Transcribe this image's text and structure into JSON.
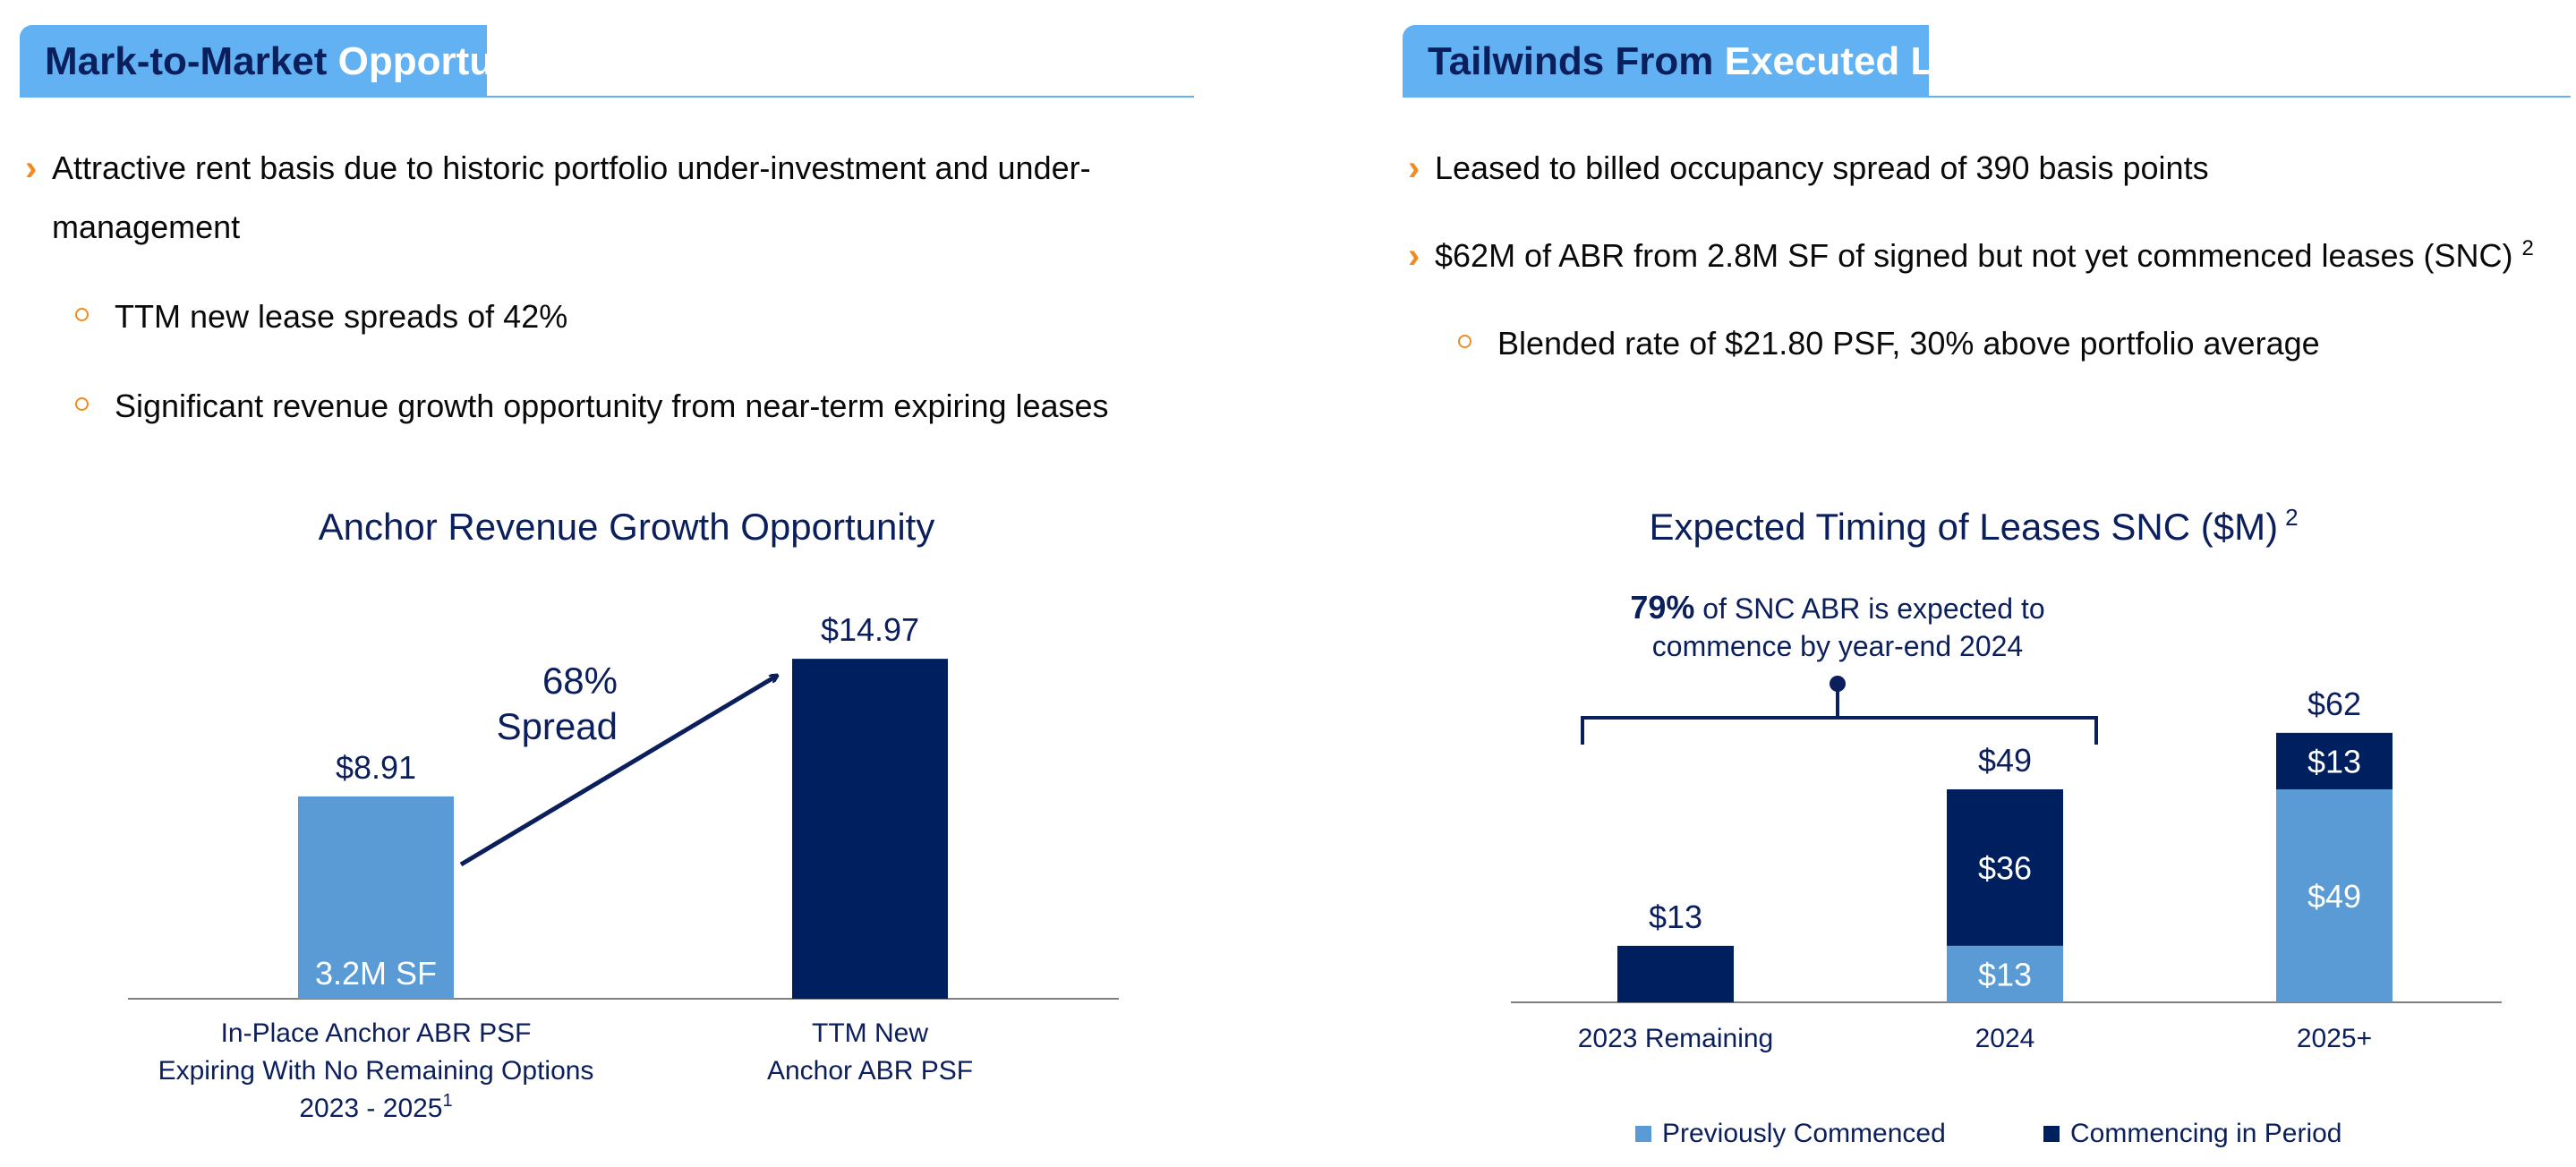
{
  "left_panel": {
    "header": {
      "dark": "Mark-to-Market ",
      "light": "Opportunities"
    },
    "bullets": [
      {
        "line1": "Attractive rent basis due to historic portfolio under-investment and under-",
        "line2": "management"
      }
    ],
    "sub_bullets": [
      "TTM new lease spreads of 42%",
      "Significant revenue growth opportunity from near-term expiring leases"
    ]
  },
  "right_panel": {
    "header": {
      "dark": "Tailwinds From ",
      "light": "Executed Leases"
    },
    "bullets": [
      {
        "text": "Leased to billed occupancy spread of 390 basis points"
      },
      {
        "text": "$62M of ABR from 2.8M SF of signed but not yet commenced leases (SNC)",
        "sup": "2"
      }
    ],
    "sub_bullets": [
      "Blended rate of $21.80 PSF, 30% above portfolio average"
    ]
  },
  "colors": {
    "navy": "#0b1f5c",
    "light_blue": "#5b9bd5",
    "header_blue": "#62b2f3",
    "orange": "#f28a1e"
  },
  "chart_data": [
    {
      "type": "bar",
      "title": "Anchor Revenue Growth Opportunity",
      "categories": [
        [
          "In-Place Anchor ABR PSF",
          "Expiring With No Remaining Options",
          "2023 - 2025"
        ],
        [
          "TTM New",
          "Anchor ABR PSF"
        ]
      ],
      "category_footnotes": [
        "1",
        ""
      ],
      "values": [
        8.91,
        14.97
      ],
      "value_labels": [
        "$8.91",
        "$14.97"
      ],
      "inner_labels": [
        "3.2M SF",
        ""
      ],
      "bar_colors": [
        "#5b9bd5",
        "#001f5f"
      ],
      "annotation": {
        "line1": "68%",
        "line2": "Spread"
      },
      "ylim": [
        0,
        16
      ],
      "grid": false
    },
    {
      "type": "bar",
      "stacked": true,
      "title": "Expected Timing of Leases SNC ($M)",
      "title_sup": "2",
      "categories": [
        "2023 Remaining",
        "2024",
        "2025+"
      ],
      "series": [
        {
          "name": "Previously Commenced",
          "color": "#5b9bd5",
          "values": [
            0,
            13,
            49
          ],
          "labels": [
            "",
            "$13",
            "$49"
          ]
        },
        {
          "name": "Commencing in Period",
          "color": "#001f5f",
          "values": [
            13,
            36,
            13
          ],
          "labels": [
            "",
            "$36",
            "$13"
          ]
        }
      ],
      "totals": [
        "$13",
        "$49",
        "$62"
      ],
      "callout": {
        "bold": "79%",
        "rest_line1": " of SNC ABR is expected to",
        "line2": "commence by year-end 2024"
      },
      "ylim": [
        0,
        70
      ],
      "grid": false,
      "legend": "bottom"
    }
  ]
}
